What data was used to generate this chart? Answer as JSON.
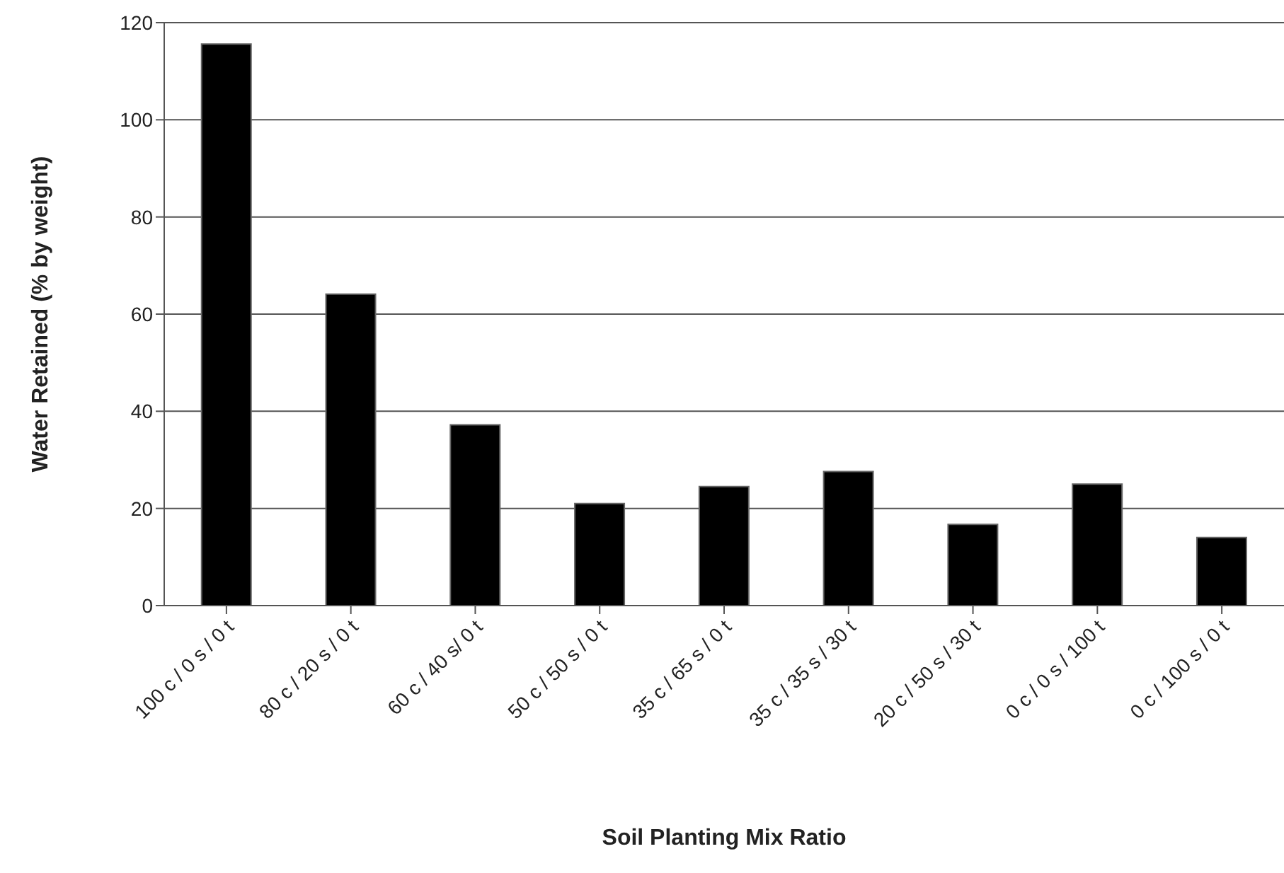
{
  "chart_data": {
    "type": "bar",
    "xlabel": "Soil Planting Mix Ratio",
    "ylabel": "Water Retained (% by weight)",
    "categories": [
      "100 c / 0 s / 0 t",
      "80 c / 20 s / 0 t",
      "60 c / 40 s/ 0 t",
      "50 c / 50 s / 0 t",
      "35 c / 65 s / 0 t",
      "35 c / 35 s / 30 t",
      "20 c / 50 s / 30 t",
      "0 c / 0 s / 100 t",
      "0 c / 100 s / 0 t"
    ],
    "values": [
      115.6,
      64.1,
      37.2,
      21.0,
      24.5,
      27.6,
      16.7,
      25.0,
      14.0
    ],
    "color": "#000000",
    "ylim": [
      0,
      120
    ],
    "yticks": [
      0,
      20,
      40,
      60,
      80,
      100,
      120
    ],
    "grid": "y"
  }
}
